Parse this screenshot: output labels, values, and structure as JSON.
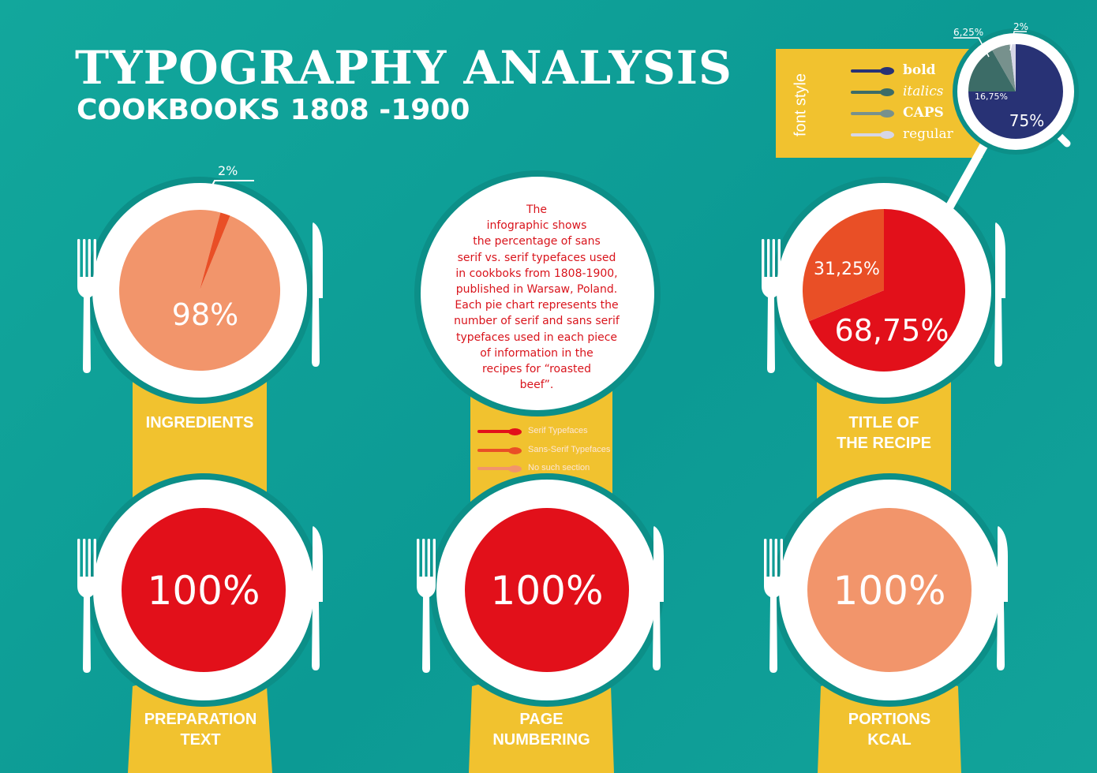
{
  "title": "TYPOGRAPHY ANALYSIS",
  "subtitle": "COOKBOOKS 1808 -1900",
  "description": "The infographic shows the percentage of sans serif vs. serif typefaces used in cookboks from 1808-1900, published in Warsaw, Poland. Each pie chart represents the number of serif and sans serif typefaces used in each piece of information in the recipes for “roasted beef”.",
  "description_lines": [
    "The",
    "infographic shows",
    "the percentage of sans",
    "serif vs. serif typefaces used",
    "in cookboks from 1808-1900,",
    "published in Warsaw, Poland.",
    "Each pie chart represents the",
    "number of serif and sans serif",
    "typefaces used in each piece",
    "of information in the",
    "recipes for “roasted",
    "beef”."
  ],
  "legend": [
    {
      "label": "Serif Typefaces",
      "color": "#e2101a"
    },
    {
      "label": "Sans-Serif Typefaces",
      "color": "#e94f26"
    },
    {
      "label": "No such section",
      "color": "#f2956b"
    }
  ],
  "font_style": {
    "title": "font style",
    "items": [
      {
        "label": "bold",
        "color": "#283275"
      },
      {
        "label": "italics",
        "color": "#3c6c67"
      },
      {
        "label": "CAPS",
        "color": "#77918d"
      },
      {
        "label": "regular",
        "color": "#d6d6e6"
      }
    ]
  },
  "colors": {
    "background": "#0fa198",
    "yellow_band": "#f1c22f",
    "plate": "#ffffff",
    "serif": "#e2101a",
    "sans_serif": "#e94f26",
    "no_section": "#f2956b"
  },
  "chart_data": [
    {
      "type": "pie",
      "title": "INGREDIENTS",
      "title_lines": [
        "INGREDIENTS"
      ],
      "slices": [
        {
          "category": "No such section",
          "value": 98,
          "label": "98%",
          "color": "#f2956b"
        },
        {
          "category": "Sans-Serif Typefaces",
          "value": 2,
          "label": "2%",
          "color": "#e94f26"
        }
      ]
    },
    {
      "type": "pie",
      "title": "TITLE OF THE RECIPE",
      "title_lines": [
        "TITLE OF",
        "THE RECIPE"
      ],
      "slices": [
        {
          "category": "Serif Typefaces",
          "value": 68.75,
          "label": "68,75%",
          "color": "#e2101a"
        },
        {
          "category": "Sans-Serif Typefaces",
          "value": 31.25,
          "label": "31,25%",
          "color": "#e94f26"
        }
      ]
    },
    {
      "type": "pie",
      "title": "PREPARATION TEXT",
      "title_lines": [
        "PREPARATION",
        "TEXT"
      ],
      "slices": [
        {
          "category": "Serif Typefaces",
          "value": 100,
          "label": "100%",
          "color": "#e2101a"
        }
      ]
    },
    {
      "type": "pie",
      "title": "PAGE NUMBERING",
      "title_lines": [
        "PAGE",
        "NUMBERING"
      ],
      "slices": [
        {
          "category": "Serif Typefaces",
          "value": 100,
          "label": "100%",
          "color": "#e2101a"
        }
      ]
    },
    {
      "type": "pie",
      "title": "PORTIONS KCAL",
      "title_lines": [
        "PORTIONS",
        "KCAL"
      ],
      "slices": [
        {
          "category": "No such section",
          "value": 100,
          "label": "100%",
          "color": "#f2956b"
        }
      ]
    },
    {
      "type": "pie",
      "title": "font style",
      "slices": [
        {
          "category": "bold",
          "value": 75,
          "label": "75%",
          "color": "#283275"
        },
        {
          "category": "italics",
          "value": 16.75,
          "label": "16,75%",
          "color": "#3c6c67"
        },
        {
          "category": "CAPS",
          "value": 6.25,
          "label": "6,25%",
          "color": "#77918d"
        },
        {
          "category": "regular",
          "value": 2,
          "label": "2%",
          "color": "#d6d6e6"
        }
      ]
    }
  ]
}
